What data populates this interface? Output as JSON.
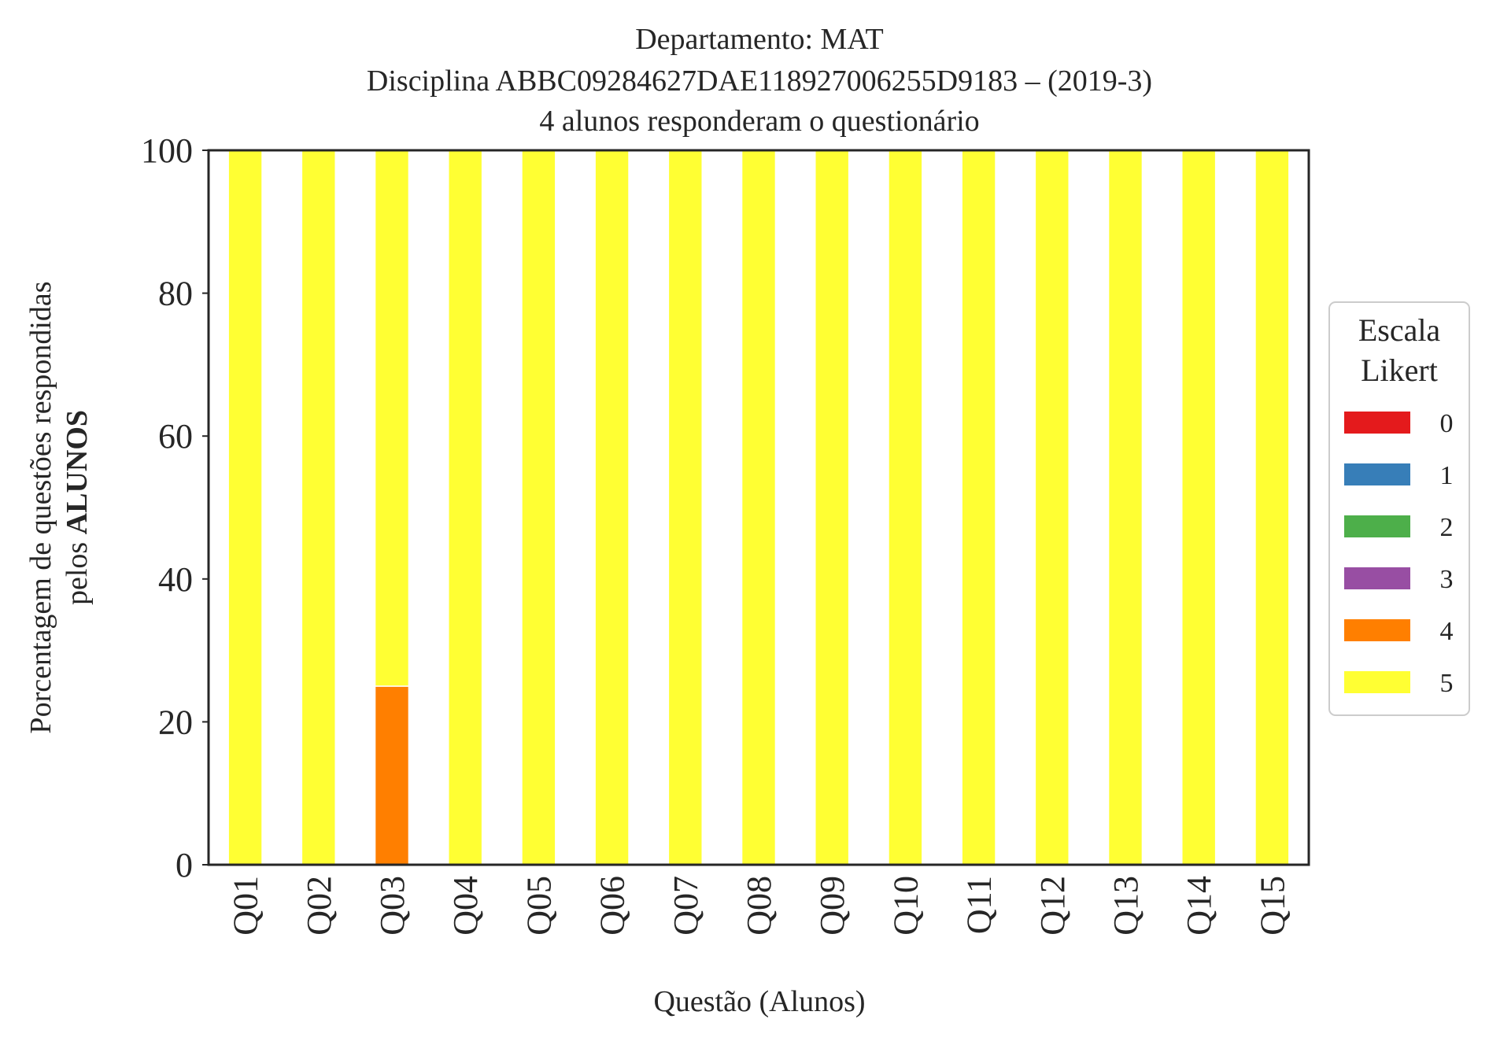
{
  "chart_data": {
    "type": "bar",
    "stacked": true,
    "title_lines": [
      "Departamento: MAT",
      "Disciplina ABBC09284627DAE118927006255D9183 – (2019-3)",
      "4 alunos responderam o questionário"
    ],
    "xlabel": "Questão (Alunos)",
    "ylabel_line1": "Porcentagem de questões respondidas",
    "ylabel_line2_prefix": "pelos ",
    "ylabel_line2_bold": "ALUNOS",
    "ylim": [
      0,
      100
    ],
    "yticks": [
      0,
      20,
      40,
      60,
      80,
      100
    ],
    "categories": [
      "Q01",
      "Q02",
      "Q03",
      "Q04",
      "Q05",
      "Q06",
      "Q07",
      "Q08",
      "Q09",
      "Q10",
      "Q11",
      "Q12",
      "Q13",
      "Q14",
      "Q15"
    ],
    "legend": {
      "title_lines": [
        "Escala",
        "Likert"
      ],
      "placement": "center-right outside"
    },
    "series": [
      {
        "name": "0",
        "color": "#e41a1c",
        "values": [
          0,
          0,
          0,
          0,
          0,
          0,
          0,
          0,
          0,
          0,
          0,
          0,
          0,
          0,
          0
        ]
      },
      {
        "name": "1",
        "color": "#377eb8",
        "values": [
          0,
          0,
          0,
          0,
          0,
          0,
          0,
          0,
          0,
          0,
          0,
          0,
          0,
          0,
          0
        ]
      },
      {
        "name": "2",
        "color": "#4daf4a",
        "values": [
          0,
          0,
          0,
          0,
          0,
          0,
          0,
          0,
          0,
          0,
          0,
          0,
          0,
          0,
          0
        ]
      },
      {
        "name": "3",
        "color": "#984ea3",
        "values": [
          0,
          0,
          0,
          0,
          0,
          0,
          0,
          0,
          0,
          0,
          0,
          0,
          0,
          0,
          0
        ]
      },
      {
        "name": "4",
        "color": "#ff7f00",
        "values": [
          0,
          0,
          25,
          0,
          0,
          0,
          0,
          0,
          0,
          0,
          0,
          0,
          0,
          0,
          0
        ]
      },
      {
        "name": "5",
        "color": "#ffff33",
        "values": [
          100,
          100,
          75,
          100,
          100,
          100,
          100,
          100,
          100,
          100,
          100,
          100,
          100,
          100,
          100
        ]
      }
    ]
  }
}
